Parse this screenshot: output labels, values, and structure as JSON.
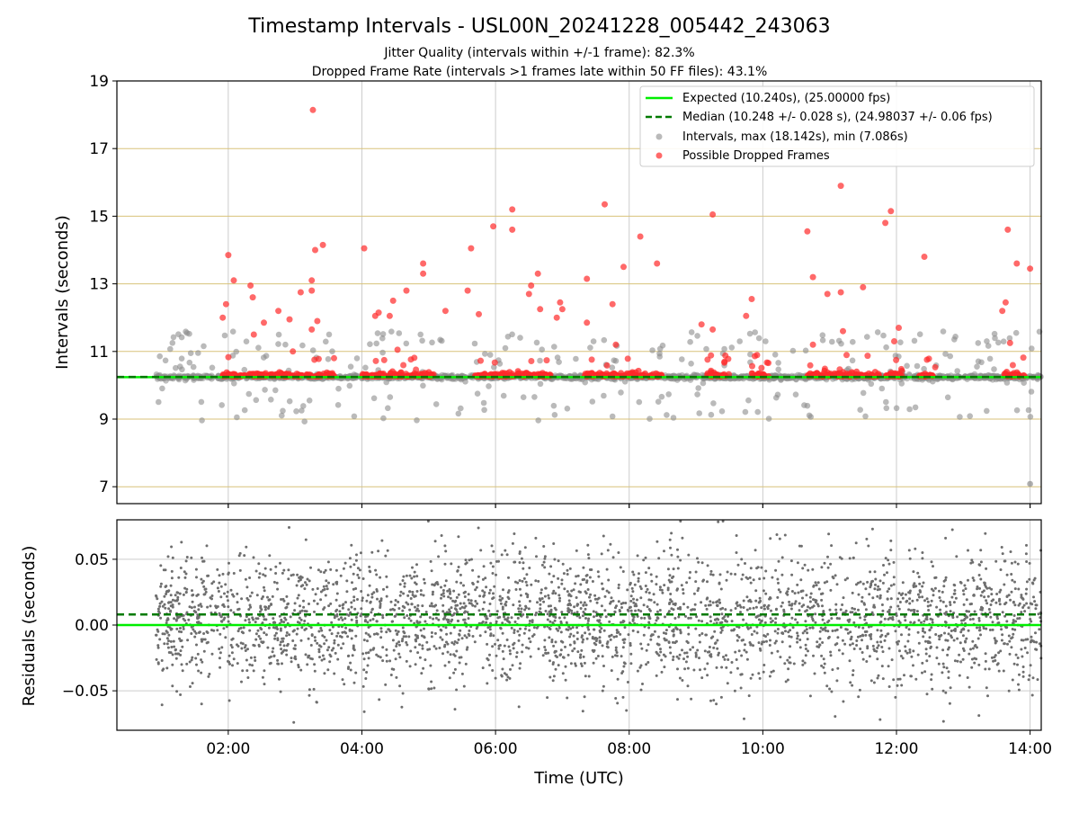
{
  "figure": {
    "title": "Timestamp Intervals - USL00N_20241228_005442_243063",
    "subtitle_1": "Jitter Quality (intervals within +/-1 frame): 82.3%",
    "subtitle_2": "Dropped Frame Rate (intervals >1 frames late within 50 FF files): 43.1%"
  },
  "chart_data": [
    {
      "type": "scatter",
      "xlabel": "",
      "ylabel": "Intervals (seconds)",
      "xlim": [
        "00:20",
        "14:10"
      ],
      "ylim": [
        6.5,
        19
      ],
      "yticks": [
        7,
        9,
        11,
        13,
        15,
        17,
        19
      ],
      "xticks": [
        "02:00",
        "04:00",
        "06:00",
        "08:00",
        "10:00",
        "12:00",
        "14:00"
      ],
      "grid": "on",
      "legend_position": "upper right",
      "lines": [
        {
          "name": "Expected (10.240s), (25.00000 fps)",
          "y": 10.24,
          "color": "#00ee00",
          "style": "solid"
        },
        {
          "name": "Median (10.248 +/- 0.028 s), (24.98037 +/- 0.06 fps)",
          "y": 10.248,
          "color": "#007a00",
          "style": "dashed"
        }
      ],
      "series": [
        {
          "name": "Intervals, max (18.142s), min (7.086s)",
          "color": "#8c8c8c",
          "x_range": [
            "00:55",
            "14:10"
          ],
          "baseline": 10.24,
          "y_max": 18.142,
          "y_min": 7.086
        },
        {
          "name": "Possible Dropped Frames",
          "color": "#ff2a2a",
          "points": [
            [
              "01:55",
              12.0
            ],
            [
              "01:58",
              12.4
            ],
            [
              "02:00",
              13.85
            ],
            [
              "02:05",
              13.1
            ],
            [
              "02:20",
              12.95
            ],
            [
              "02:22",
              12.6
            ],
            [
              "02:23",
              11.5
            ],
            [
              "02:32",
              11.85
            ],
            [
              "02:45",
              12.2
            ],
            [
              "02:55",
              11.95
            ],
            [
              "02:58",
              11.0
            ],
            [
              "03:05",
              12.75
            ],
            [
              "03:15",
              13.1
            ],
            [
              "03:15",
              12.8
            ],
            [
              "03:15",
              11.65
            ],
            [
              "03:16",
              18.142
            ],
            [
              "03:18",
              14.0
            ],
            [
              "03:20",
              11.9
            ],
            [
              "03:25",
              14.15
            ],
            [
              "03:35",
              10.8
            ],
            [
              "04:02",
              14.05
            ],
            [
              "04:12",
              12.05
            ],
            [
              "04:15",
              12.15
            ],
            [
              "04:25",
              12.05
            ],
            [
              "04:28",
              12.5
            ],
            [
              "04:32",
              11.05
            ],
            [
              "04:40",
              12.8
            ],
            [
              "04:55",
              13.3
            ],
            [
              "04:55",
              13.6
            ],
            [
              "05:15",
              12.2
            ],
            [
              "05:35",
              12.8
            ],
            [
              "05:38",
              14.05
            ],
            [
              "05:45",
              12.1
            ],
            [
              "05:58",
              14.7
            ],
            [
              "06:15",
              15.2
            ],
            [
              "06:15",
              14.6
            ],
            [
              "06:30",
              12.7
            ],
            [
              "06:32",
              12.95
            ],
            [
              "06:38",
              13.3
            ],
            [
              "06:40",
              12.25
            ],
            [
              "06:55",
              12.0
            ],
            [
              "06:58",
              12.45
            ],
            [
              "07:00",
              12.25
            ],
            [
              "07:22",
              11.85
            ],
            [
              "07:22",
              13.15
            ],
            [
              "07:38",
              15.35
            ],
            [
              "07:45",
              12.4
            ],
            [
              "07:48",
              11.2
            ],
            [
              "07:55",
              13.5
            ],
            [
              "08:10",
              14.4
            ],
            [
              "08:25",
              13.6
            ],
            [
              "09:05",
              11.8
            ],
            [
              "09:15",
              11.65
            ],
            [
              "09:15",
              15.05
            ],
            [
              "09:45",
              12.05
            ],
            [
              "09:50",
              12.55
            ],
            [
              "10:40",
              14.55
            ],
            [
              "10:45",
              13.2
            ],
            [
              "10:45",
              11.2
            ],
            [
              "10:58",
              12.7
            ],
            [
              "11:10",
              15.9
            ],
            [
              "11:10",
              12.75
            ],
            [
              "11:12",
              11.6
            ],
            [
              "11:30",
              12.9
            ],
            [
              "11:50",
              14.8
            ],
            [
              "11:55",
              15.15
            ],
            [
              "11:58",
              11.3
            ],
            [
              "12:02",
              11.7
            ],
            [
              "12:25",
              13.8
            ],
            [
              "13:35",
              12.2
            ],
            [
              "13:38",
              12.45
            ],
            [
              "13:40",
              14.6
            ],
            [
              "13:42",
              11.25
            ],
            [
              "13:48",
              13.6
            ],
            [
              "14:00",
              13.45
            ]
          ]
        }
      ]
    },
    {
      "type": "scatter",
      "xlabel": "Time (UTC)",
      "ylabel": "Residuals (seconds)",
      "xlim": [
        "00:20",
        "14:10"
      ],
      "ylim": [
        -0.08,
        0.08
      ],
      "yticks": [
        -0.05,
        0.0,
        0.05
      ],
      "ytick_labels": [
        "−0.05",
        "0.00",
        "0.05"
      ],
      "xticks": [
        "02:00",
        "04:00",
        "06:00",
        "08:00",
        "10:00",
        "12:00",
        "14:00"
      ],
      "grid": "on",
      "lines": [
        {
          "y": 0.0,
          "color": "#00ee00",
          "style": "solid"
        },
        {
          "y": 0.008,
          "color": "#007a00",
          "style": "dashed"
        }
      ],
      "series": [
        {
          "color": "#6e6e6e",
          "x_range": [
            "00:55",
            "14:10"
          ],
          "center": 0.004,
          "spread": 0.025
        }
      ]
    }
  ],
  "colors": {
    "gridline_horizontal_top": "#d8c27a",
    "gridline_vertical": "#cccccc",
    "interval_point": "#8c8c8c",
    "dropped_point": "#ff2a2a",
    "residual_point": "#6e6e6e"
  }
}
